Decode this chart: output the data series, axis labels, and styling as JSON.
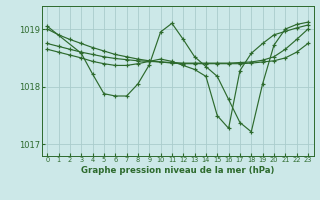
{
  "title": "Graphe pression niveau de la mer (hPa)",
  "bg_color": "#cce8e8",
  "grid_color": "#aacccc",
  "line_color": "#2d6a2d",
  "ylim": [
    1016.8,
    1019.4
  ],
  "xlim": [
    -0.5,
    23.5
  ],
  "yticks": [
    1017,
    1018,
    1019
  ],
  "xticks": [
    0,
    1,
    2,
    3,
    4,
    5,
    6,
    7,
    8,
    9,
    10,
    11,
    12,
    13,
    14,
    15,
    16,
    17,
    18,
    19,
    20,
    21,
    22,
    23
  ],
  "series": [
    {
      "x": [
        0,
        1,
        2,
        3,
        4,
        5,
        6,
        7,
        8,
        9,
        10,
        11,
        12,
        13,
        14,
        15,
        16,
        17,
        18,
        19,
        20,
        21,
        22,
        23
      ],
      "y": [
        1019.0,
        1018.9,
        1018.82,
        1018.75,
        1018.68,
        1018.62,
        1018.56,
        1018.52,
        1018.48,
        1018.45,
        1018.43,
        1018.41,
        1018.4,
        1018.4,
        1018.4,
        1018.4,
        1018.4,
        1018.4,
        1018.41,
        1018.43,
        1018.45,
        1018.5,
        1018.6,
        1018.75
      ]
    },
    {
      "x": [
        0,
        1,
        2,
        3,
        4,
        5,
        6,
        7,
        8,
        9,
        10,
        11,
        12,
        13,
        14,
        15,
        16,
        17,
        18,
        19,
        20,
        21,
        22,
        23
      ],
      "y": [
        1018.75,
        1018.7,
        1018.65,
        1018.6,
        1018.56,
        1018.52,
        1018.49,
        1018.47,
        1018.45,
        1018.44,
        1018.43,
        1018.42,
        1018.41,
        1018.41,
        1018.41,
        1018.41,
        1018.41,
        1018.42,
        1018.43,
        1018.46,
        1018.52,
        1018.65,
        1018.82,
        1019.0
      ]
    },
    {
      "x": [
        0,
        3,
        4,
        5,
        6,
        7,
        8,
        9,
        10,
        11,
        12,
        13,
        14,
        15,
        16,
        17,
        18,
        19,
        20,
        21,
        22,
        23
      ],
      "y": [
        1019.05,
        1018.58,
        1018.22,
        1017.88,
        1017.84,
        1017.84,
        1018.05,
        1018.38,
        1018.95,
        1019.1,
        1018.82,
        1018.52,
        1018.35,
        1018.18,
        1017.78,
        1017.38,
        1017.22,
        1018.05,
        1018.72,
        1019.0,
        1019.08,
        1019.12
      ]
    },
    {
      "x": [
        0,
        1,
        2,
        3,
        4,
        5,
        6,
        7,
        8,
        9,
        10,
        11,
        12,
        13,
        14,
        15,
        16,
        17,
        18,
        19,
        20,
        21,
        22,
        23
      ],
      "y": [
        1018.65,
        1018.6,
        1018.55,
        1018.5,
        1018.44,
        1018.4,
        1018.37,
        1018.37,
        1018.4,
        1018.44,
        1018.48,
        1018.44,
        1018.37,
        1018.3,
        1018.18,
        1017.5,
        1017.28,
        1018.28,
        1018.58,
        1018.75,
        1018.9,
        1018.96,
        1019.02,
        1019.07
      ]
    }
  ]
}
